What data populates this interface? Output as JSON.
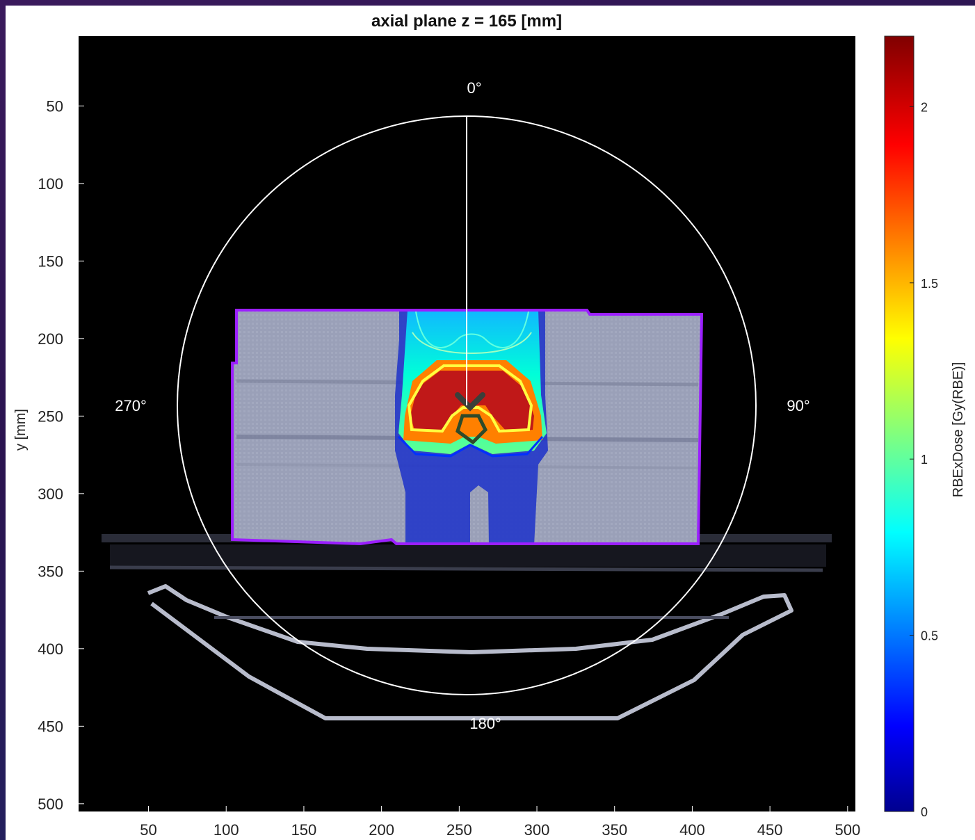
{
  "chart_data": {
    "type": "heatmap",
    "title": "axial plane z = 165 [mm]",
    "xlabel": "",
    "ylabel": "y [mm]",
    "xlim": [
      5,
      505
    ],
    "ylim": [
      5,
      505
    ],
    "y_reversed": true,
    "x_ticks": [
      50,
      100,
      150,
      200,
      250,
      300,
      350,
      400,
      450,
      500
    ],
    "y_ticks": [
      50,
      100,
      150,
      200,
      250,
      300,
      350,
      400,
      450,
      500
    ],
    "colorbar": {
      "label": "RBExDose [Gy(RBE)]",
      "colormap": "jet",
      "range": [
        0,
        2.2
      ],
      "ticks": [
        0,
        0.5,
        1,
        1.5,
        2
      ],
      "tick_labels": [
        "0",
        "0.5",
        "1",
        "1.5",
        "2"
      ]
    },
    "gantry_circle": {
      "center": [
        254,
        240
      ],
      "radius": 187,
      "angle_labels": [
        "0°",
        "90°",
        "180°",
        "270°"
      ]
    },
    "phantom_outline_color": "#9b1fff",
    "target_contour_color": "#2e4a2a",
    "isodose_levels": [
      {
        "level": 0.2,
        "color": "#0000c8"
      },
      {
        "level": 0.5,
        "color": "#00a8ff"
      },
      {
        "level": 0.8,
        "color": "#40ffd0"
      },
      {
        "level": 1.0,
        "color": "#a8ff80"
      },
      {
        "level": 1.5,
        "color": "#ffff00"
      },
      {
        "level": 1.9,
        "color": "#ff3000"
      },
      {
        "level": 2.0,
        "color": "#ffff60"
      }
    ]
  },
  "labels": {
    "title": "axial plane z = 165 [mm]",
    "ylabel": "y [mm]",
    "colorbar_label": "RBExDose [Gy(RBE)]",
    "angle_0": "0°",
    "angle_90": "90°",
    "angle_180": "180°",
    "angle_270": "270°"
  }
}
